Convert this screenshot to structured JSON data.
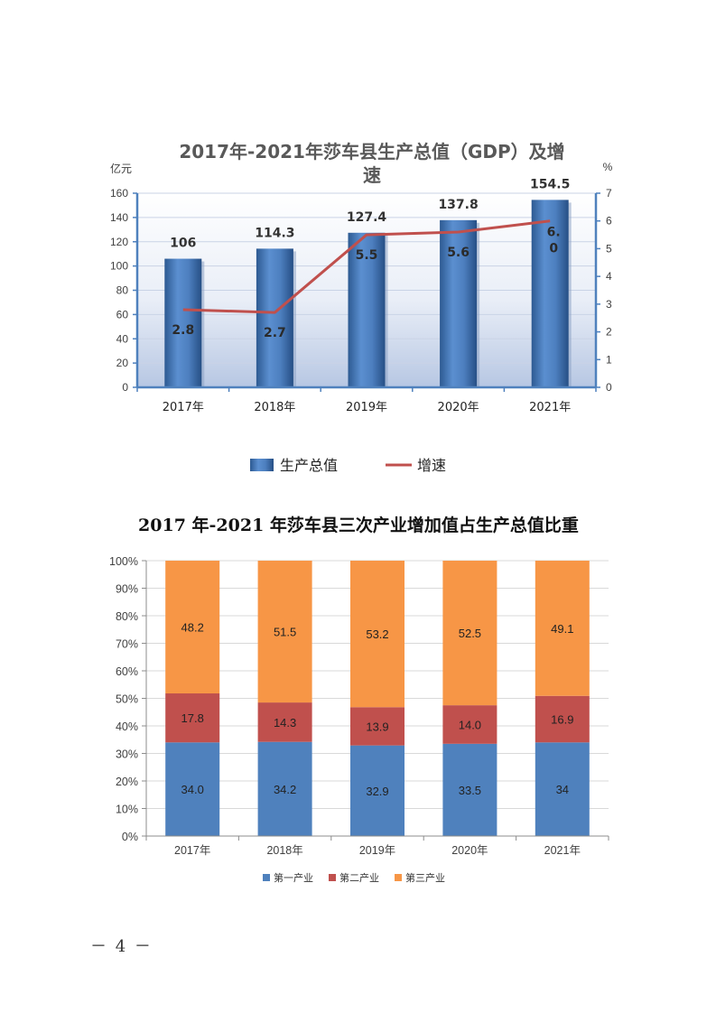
{
  "chart_data": [
    {
      "type": "bar",
      "title_line1": "2017年-2021年莎车县生产总值（GDP）及增",
      "title_line2": "速",
      "y_left_unit": "亿元",
      "y_right_unit": "%",
      "categories": [
        "2017年",
        "2018年",
        "2019年",
        "2020年",
        "2021年"
      ],
      "ylim_left": [
        0,
        160
      ],
      "ylim_right": [
        0,
        7
      ],
      "y_left_ticks": [
        "0",
        "20",
        "40",
        "60",
        "80",
        "100",
        "120",
        "140",
        "160"
      ],
      "y_right_ticks": [
        "0",
        "1",
        "2",
        "3",
        "4",
        "5",
        "6",
        "7"
      ],
      "series": [
        {
          "name": "生产总值",
          "type": "bar",
          "axis": "left",
          "values": [
            106,
            114.3,
            127.4,
            137.8,
            154.5
          ],
          "labels": [
            "106",
            "114.3",
            "127.4",
            "137.8",
            "154.5"
          ]
        },
        {
          "name": "增速",
          "type": "line",
          "axis": "right",
          "values": [
            2.8,
            2.7,
            5.5,
            5.6,
            6.0
          ],
          "labels": [
            "2.8",
            "2.7",
            "5.5",
            "5.6",
            "6.\n0"
          ]
        }
      ],
      "legend": [
        "生产总值",
        "增速"
      ],
      "colors": {
        "bar": "#4f81bd",
        "line": "#c0504d"
      }
    },
    {
      "type": "bar",
      "stacked": true,
      "title": "2017 年-2021 年莎车县三次产业增加值占生产总值比重",
      "categories": [
        "2017年",
        "2018年",
        "2019年",
        "2020年",
        "2021年"
      ],
      "ylim": [
        0,
        100
      ],
      "y_ticks": [
        "0%",
        "10%",
        "20%",
        "30%",
        "40%",
        "50%",
        "60%",
        "70%",
        "80%",
        "90%",
        "100%"
      ],
      "series": [
        {
          "name": "第一产业",
          "values": [
            34.0,
            34.2,
            32.9,
            33.5,
            34
          ],
          "labels": [
            "34.0",
            "34.2",
            "32.9",
            "33.5",
            "34"
          ],
          "color": "#4f81bd"
        },
        {
          "name": "第二产业",
          "values": [
            17.8,
            14.3,
            13.9,
            14.0,
            16.9
          ],
          "labels": [
            "17.8",
            "14.3",
            "13.9",
            "14.0",
            "16.9"
          ],
          "color": "#c0504d"
        },
        {
          "name": "第三产业",
          "values": [
            48.2,
            51.5,
            53.2,
            52.5,
            49.1
          ],
          "labels": [
            "48.2",
            "51.5",
            "53.2",
            "52.5",
            "49.1"
          ],
          "color": "#f79646"
        }
      ],
      "legend": [
        "第一产业",
        "第二产业",
        "第三产业"
      ]
    }
  ],
  "page_number": "－ 4 －"
}
